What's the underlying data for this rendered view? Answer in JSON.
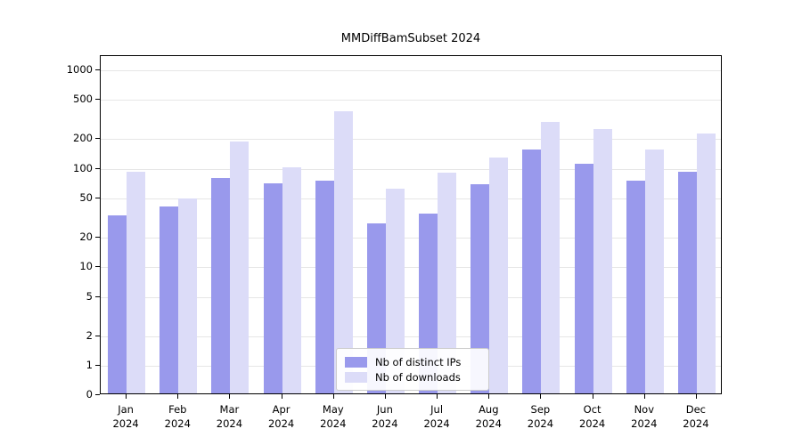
{
  "title": "MMDiffBamSubset 2024",
  "chart_data": {
    "type": "bar",
    "title": "MMDiffBamSubset 2024",
    "scale": "symlog",
    "grid": "horizontal",
    "legend_position": "lower center",
    "categories": [
      "Jan 2024",
      "Feb 2024",
      "Mar 2024",
      "Apr 2024",
      "May 2024",
      "Jun 2024",
      "Jul 2024",
      "Aug 2024",
      "Sep 2024",
      "Oct 2024",
      "Nov 2024",
      "Dec 2024"
    ],
    "series": [
      {
        "name": "Nb of distinct IPs",
        "color": "#9999ec",
        "values": [
          32,
          40,
          78,
          68,
          72,
          27,
          34,
          67,
          150,
          108,
          72,
          90
        ]
      },
      {
        "name": "Nb of downloads",
        "color": "#dcdcf8",
        "values": [
          90,
          48,
          180,
          100,
          370,
          60,
          88,
          125,
          285,
          245,
          150,
          220
        ]
      }
    ],
    "yticks": [
      0,
      1,
      2,
      5,
      10,
      20,
      50,
      100,
      200,
      500,
      1000
    ],
    "ylim": [
      0,
      1000
    ],
    "xlabel": "",
    "ylabel": ""
  }
}
